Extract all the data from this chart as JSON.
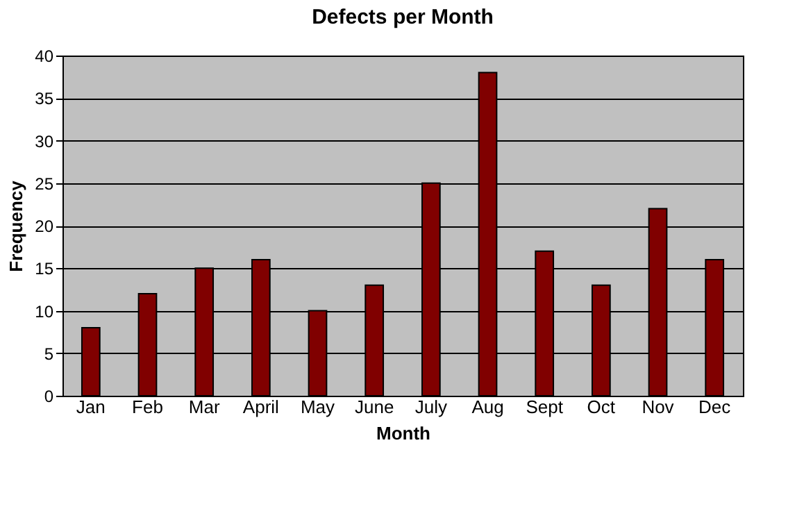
{
  "chart_data": {
    "type": "bar",
    "title": "Defects per Month",
    "xlabel": "Month",
    "ylabel": "Frequency",
    "categories": [
      "Jan",
      "Feb",
      "Mar",
      "April",
      "May",
      "June",
      "July",
      "Aug",
      "Sept",
      "Oct",
      "Nov",
      "Dec"
    ],
    "values": [
      8,
      12,
      15,
      16,
      10,
      13,
      25,
      38,
      17,
      13,
      22,
      16
    ],
    "color": "#800000",
    "ylim": [
      0,
      40
    ],
    "yticks": [
      0,
      5,
      10,
      15,
      20,
      25,
      30,
      35,
      40
    ],
    "grid": "y"
  }
}
